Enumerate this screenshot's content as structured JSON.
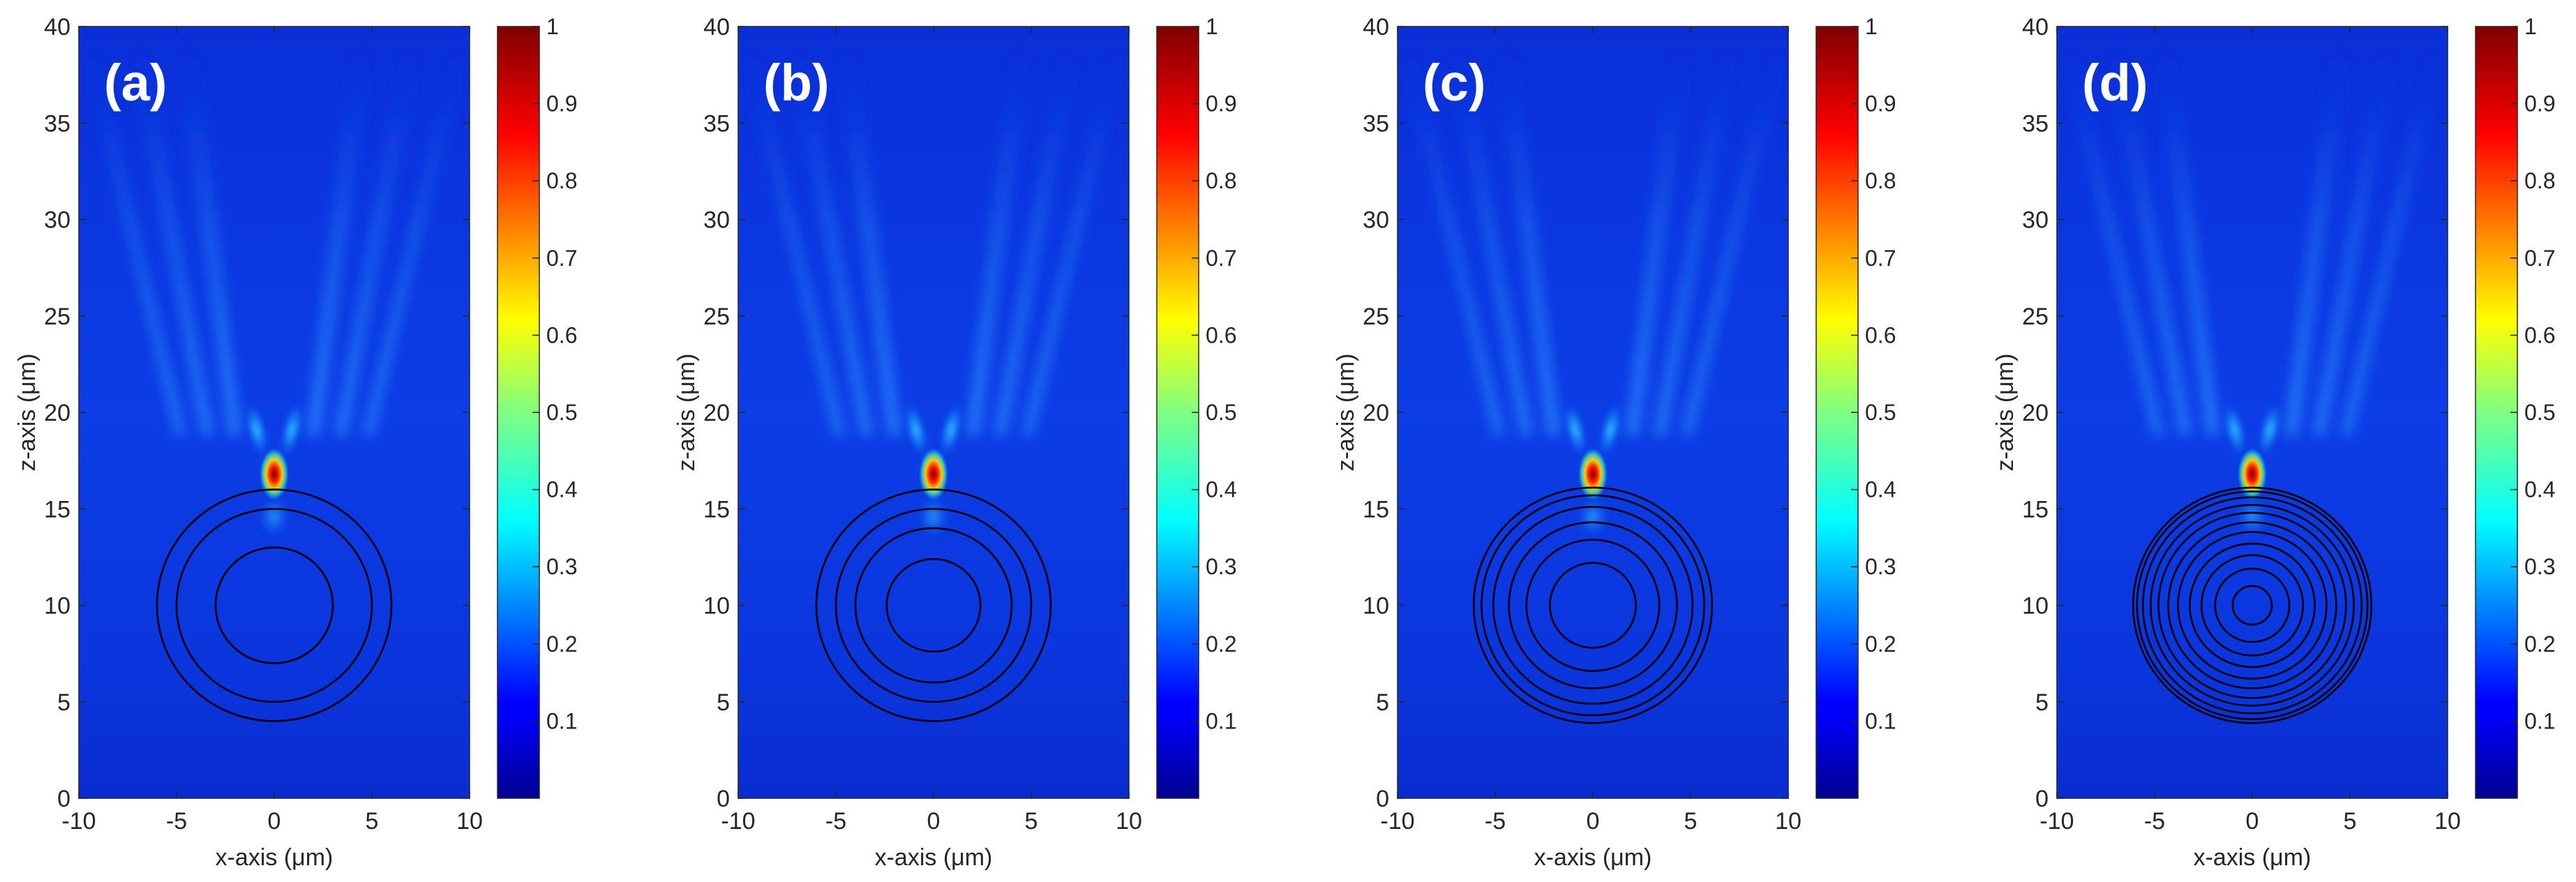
{
  "chart_data": [
    {
      "type": "heatmap",
      "panel_label": "(a)",
      "xlabel": "x-axis (μm)",
      "ylabel": "z-axis (μm)",
      "xlim": [
        -10,
        10
      ],
      "ylim": [
        0,
        40
      ],
      "xticks": [
        "-10",
        "-5",
        "0",
        "5",
        "10"
      ],
      "yticks": [
        "0",
        "5",
        "10",
        "15",
        "20",
        "25",
        "30",
        "35",
        "40"
      ],
      "colorbar": {
        "range": [
          0,
          1
        ],
        "ticks": [
          "0.1",
          "0.2",
          "0.3",
          "0.4",
          "0.5",
          "0.6",
          "0.7",
          "0.8",
          "0.9",
          "1"
        ]
      },
      "focus": {
        "x": 0,
        "z": 16.8
      },
      "rings": {
        "center": [
          0,
          10
        ],
        "radii": [
          3.0,
          5.0,
          6.0
        ]
      }
    },
    {
      "type": "heatmap",
      "panel_label": "(b)",
      "xlabel": "x-axis (μm)",
      "ylabel": "z-axis (μm)",
      "xlim": [
        -10,
        10
      ],
      "ylim": [
        0,
        40
      ],
      "xticks": [
        "-10",
        "-5",
        "0",
        "5",
        "10"
      ],
      "yticks": [
        "0",
        "5",
        "10",
        "15",
        "20",
        "25",
        "30",
        "35",
        "40"
      ],
      "colorbar": {
        "range": [
          0,
          1
        ],
        "ticks": [
          "0.1",
          "0.2",
          "0.3",
          "0.4",
          "0.5",
          "0.6",
          "0.7",
          "0.8",
          "0.9",
          "1"
        ]
      },
      "focus": {
        "x": 0,
        "z": 16.8
      },
      "rings": {
        "center": [
          0,
          10
        ],
        "radii": [
          2.4,
          4.0,
          5.0,
          6.0
        ]
      }
    },
    {
      "type": "heatmap",
      "panel_label": "(c)",
      "xlabel": "x-axis (μm)",
      "ylabel": "z-axis (μm)",
      "xlim": [
        -10,
        10
      ],
      "ylim": [
        0,
        40
      ],
      "xticks": [
        "-10",
        "-5",
        "0",
        "5",
        "10"
      ],
      "yticks": [
        "0",
        "5",
        "10",
        "15",
        "20",
        "25",
        "30",
        "35",
        "40"
      ],
      "colorbar": {
        "range": [
          0,
          1
        ],
        "ticks": [
          "0.1",
          "0.2",
          "0.3",
          "0.4",
          "0.5",
          "0.6",
          "0.7",
          "0.8",
          "0.9",
          "1"
        ]
      },
      "focus": {
        "x": 0,
        "z": 16.8
      },
      "rings": {
        "center": [
          0,
          10
        ],
        "radii": [
          2.2,
          3.4,
          4.3,
          5.1,
          5.7,
          6.1
        ]
      }
    },
    {
      "type": "heatmap",
      "panel_label": "(d)",
      "xlabel": "x-axis (μm)",
      "ylabel": "z-axis (μm)",
      "xlim": [
        -10,
        10
      ],
      "ylim": [
        0,
        40
      ],
      "xticks": [
        "-10",
        "-5",
        "0",
        "5",
        "10"
      ],
      "yticks": [
        "0",
        "5",
        "10",
        "15",
        "20",
        "25",
        "30",
        "35",
        "40"
      ],
      "colorbar": {
        "range": [
          0,
          1
        ],
        "ticks": [
          "0.1",
          "0.2",
          "0.3",
          "0.4",
          "0.5",
          "0.6",
          "0.7",
          "0.8",
          "0.9",
          "1"
        ]
      },
      "focus": {
        "x": 0,
        "z": 16.8
      },
      "rings": {
        "center": [
          0,
          10
        ],
        "radii": [
          1.0,
          1.9,
          2.6,
          3.2,
          3.8,
          4.3,
          4.8,
          5.2,
          5.6,
          5.9,
          6.1
        ]
      }
    }
  ]
}
